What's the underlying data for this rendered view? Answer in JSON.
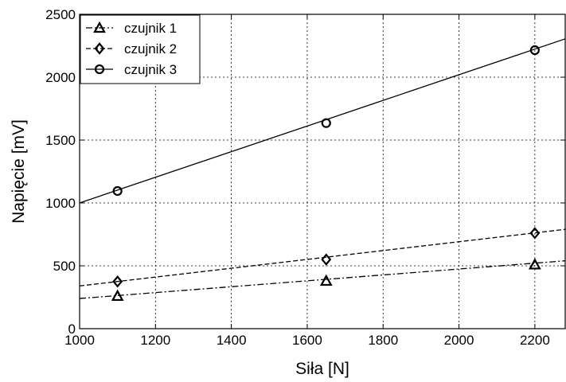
{
  "chart_data": {
    "type": "line",
    "title": "",
    "xlabel": "Siła [N]",
    "ylabel": "Napięcie [mV]",
    "xlim": [
      1000,
      2280
    ],
    "ylim": [
      0,
      2500
    ],
    "xticks": [
      1000,
      1200,
      1400,
      1600,
      1800,
      2000,
      2200
    ],
    "yticks": [
      0,
      500,
      1000,
      1500,
      2000,
      2500
    ],
    "grid": true,
    "legend_position": "top-left",
    "series": [
      {
        "name": "czujnik 1",
        "marker": "triangle",
        "line_style": "dash-dot",
        "points": [
          {
            "x": 1100,
            "y": 260
          },
          {
            "x": 1650,
            "y": 380
          },
          {
            "x": 2200,
            "y": 510
          }
        ],
        "fit": {
          "x": [
            1000,
            2280
          ],
          "y": [
            240,
            540
          ]
        }
      },
      {
        "name": "czujnik 2",
        "marker": "diamond",
        "line_style": "dashed",
        "points": [
          {
            "x": 1100,
            "y": 375
          },
          {
            "x": 1650,
            "y": 550
          },
          {
            "x": 2200,
            "y": 760
          }
        ],
        "fit": {
          "x": [
            1000,
            2280
          ],
          "y": [
            340,
            790
          ]
        }
      },
      {
        "name": "czujnik 3",
        "marker": "circle",
        "line_style": "solid",
        "points": [
          {
            "x": 1100,
            "y": 1095
          },
          {
            "x": 1650,
            "y": 1635
          },
          {
            "x": 2200,
            "y": 2215
          }
        ],
        "fit": {
          "x": [
            1000,
            2280
          ],
          "y": [
            1000,
            2305
          ]
        }
      }
    ]
  }
}
